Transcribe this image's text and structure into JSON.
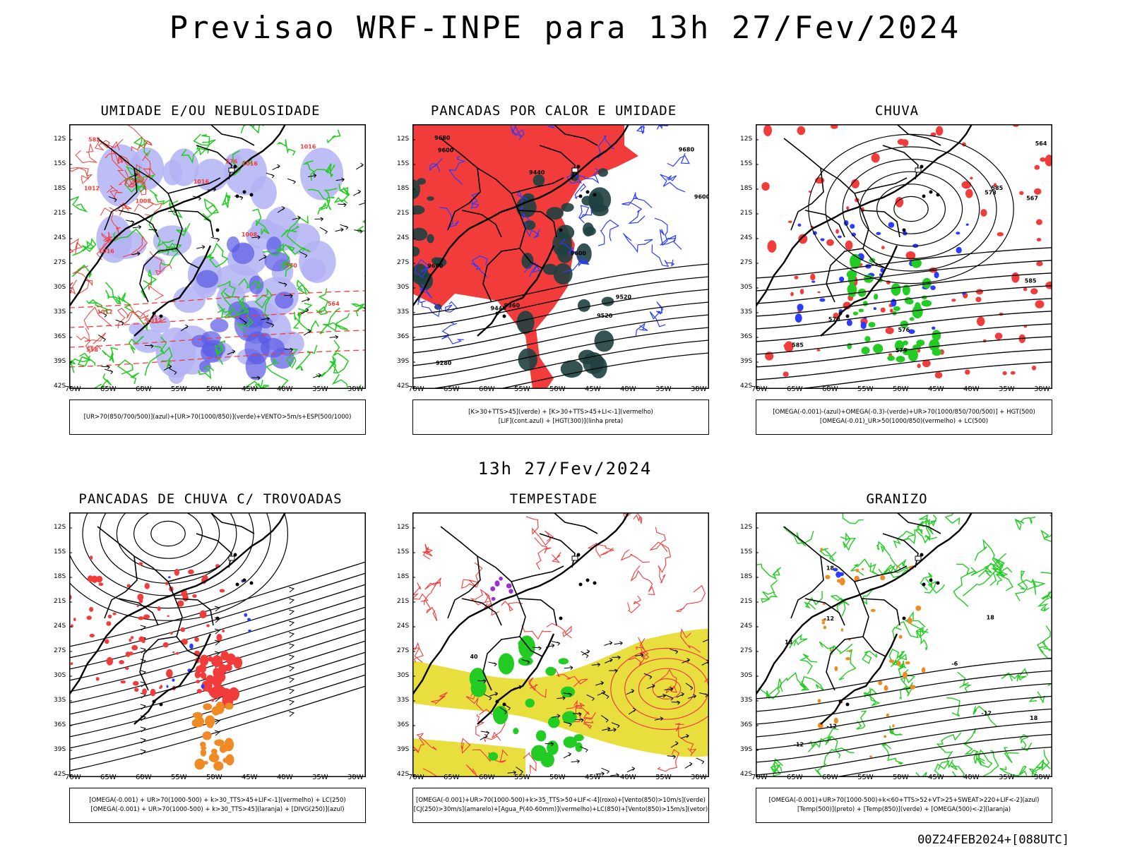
{
  "header": {
    "title": "Previsao WRF-INPE  para 13h 27/Fev/2024"
  },
  "middle_title": "13h 27/Fev/2024",
  "footer": "00Z24FEB2024+[088UTC]",
  "axes": {
    "lat": [
      "12S",
      "15S",
      "18S",
      "21S",
      "24S",
      "27S",
      "30S",
      "33S",
      "36S",
      "39S",
      "42S"
    ],
    "lon": [
      "70W",
      "65W",
      "60W",
      "55W",
      "50W",
      "45W",
      "40W",
      "35W",
      "30W"
    ]
  },
  "panels": [
    {
      "id": "umidade",
      "title": "UMIDADE E/OU NEBULOSIDADE",
      "legend": [
        "[UR>70(850/700/500)](azul)+[UR>70(1000/850)](verde)+VENTO>5m/s+ESP(500/1000)"
      ],
      "contour_labels": [
        "1012",
        "1012",
        "1016",
        "1016",
        "1008",
        "1012",
        "1016",
        "1008",
        "1016",
        "576",
        "570",
        "558",
        "564",
        "582"
      ]
    },
    {
      "id": "pancadas-calor",
      "title": "PANCADAS POR CALOR E UMIDADE",
      "legend": [
        "[K>30+TTS>45](verde) + [K>30+TTS>45+LI<-1](vermelho)",
        "[LIF](cont.azul) + [HGT(300)](linha preta)"
      ],
      "contour_labels": [
        "9600",
        "9680",
        "9680",
        "9680",
        "9600",
        "9520",
        "9440",
        "9360",
        "9280",
        "9520",
        "9440",
        "9600"
      ]
    },
    {
      "id": "chuva",
      "title": "CHUVA",
      "legend": [
        "[OMEGA(-0.001)-(azul)+OMEGA(-0.3)-(verde)+UR>70(1000/850/700/500)] + HGT(500)",
        "[OMEGA(-0.01)_UR>50(1000/850)(vermelho) + LC(500)"
      ],
      "contour_labels": [
        "585",
        "585",
        "585",
        "579",
        "573",
        "570",
        "567",
        "564",
        "576"
      ]
    },
    {
      "id": "trovoadas",
      "title": "PANCADAS DE CHUVA C/ TROVOADAS",
      "legend": [
        "[OMEGA(-0.001) + UR>70(1000-500) + k>30_TTS>45+LIF<-1](vermelho) + LC(250)",
        "[OMEGA(-0.001) + UR>70(1000-500) + k>30_TTS>45](laranja) + [DIVG(250)](azul)"
      ],
      "contour_labels": []
    },
    {
      "id": "tempestade",
      "title": "TEMPESTADE",
      "legend": [
        "[OMEGA(-0.001)+UR>70(1000-500)+k>35_TTS>50+LIF<-4](roxo)+[Vento(850)>10m/s](verde)",
        "[CJ(250)>30m/s](amarelo)+[Agua_P(40-60mm)](vermelho)+LC(850)+[Vento(850)>15m/s](vetor)"
      ],
      "contour_labels": [
        "40"
      ]
    },
    {
      "id": "granizo",
      "title": "GRANIZO",
      "legend": [
        "[OMEGA(-0.001)+UR>70(1000-500)+k<60+TTS>52+VT>25+SWEAT>220+LIF<-2](azul)",
        "[Temp(500)](preto) + [Temp(850)](verde) + [OMEGA(500)<-2](laranja)"
      ],
      "contour_labels": [
        "-12",
        "-12",
        "-12",
        "18",
        "18",
        "18",
        "-6",
        "-12",
        "18"
      ]
    }
  ],
  "colors": {
    "blue_shade": "#b3b3f5",
    "blue_strong": "#5a5ae6",
    "green": "#22cc22",
    "red": "#f23c3c",
    "dark_teal": "#1f4040",
    "yellow": "#e5dc2a",
    "orange": "#f08a24",
    "purple": "#9b30d0",
    "blue_line": "#2a3cff"
  }
}
